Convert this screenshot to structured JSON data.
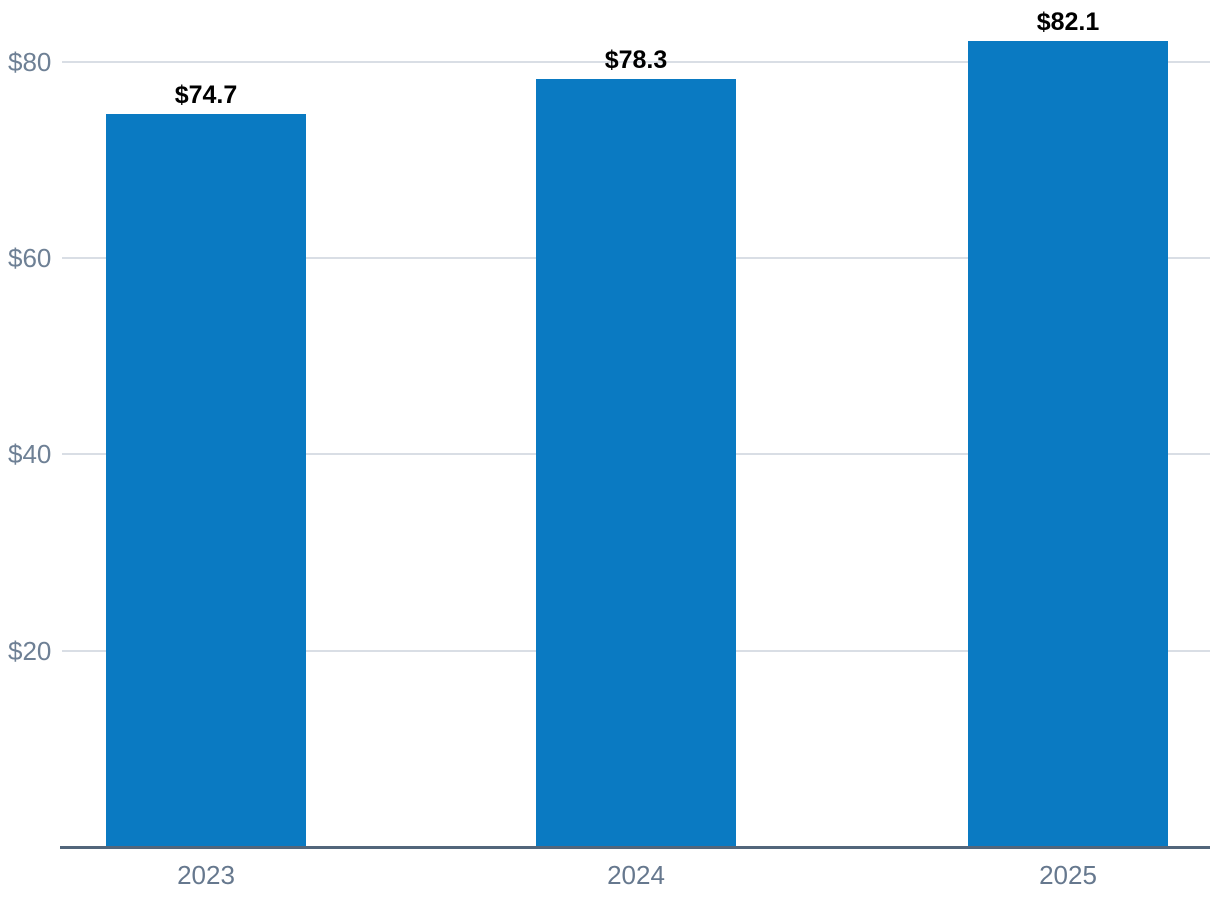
{
  "chart_data": {
    "type": "bar",
    "categories": [
      "2023",
      "2024",
      "2025"
    ],
    "values": [
      74.7,
      78.3,
      82.1
    ],
    "data_labels": [
      "$74.7",
      "$78.3",
      "$82.1"
    ],
    "title": "",
    "xlabel": "",
    "ylabel": "",
    "ylim": [
      0,
      86.3
    ],
    "yticks": [
      20,
      40,
      60,
      80
    ],
    "ytick_labels": [
      "$20",
      "$40",
      "$60",
      "$80"
    ],
    "grid": "horizontal",
    "legend": "none",
    "colors": {
      "bar": "#0a7ac2",
      "gridline": "#d9dee5",
      "axis_line": "#52667b",
      "ytick_label": "#6e8095",
      "xtick_label": "#66788e",
      "data_label": "#000000",
      "background": "#ffffff"
    }
  }
}
